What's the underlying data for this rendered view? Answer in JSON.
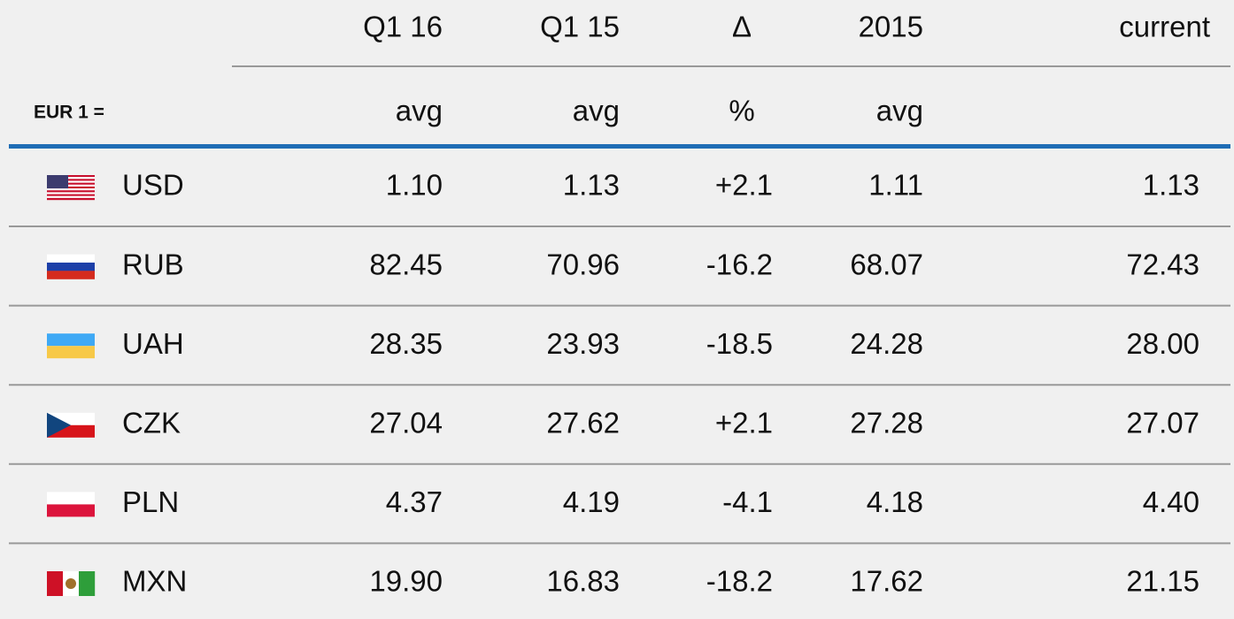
{
  "header": {
    "columns": [
      "Q1 16",
      "Q1 15",
      "Δ",
      "2015",
      "current"
    ],
    "label": "EUR 1 =",
    "units": [
      "avg",
      "avg",
      "%",
      "avg"
    ]
  },
  "table": {
    "rows": [
      {
        "currency": "USD",
        "values": [
          "1.10",
          "1.13",
          "+2.1",
          "1.11",
          "1.13"
        ]
      },
      {
        "currency": "RUB",
        "values": [
          "82.45",
          "70.96",
          "-16.2",
          "68.07",
          "72.43"
        ]
      },
      {
        "currency": "UAH",
        "values": [
          "28.35",
          "23.93",
          "-18.5",
          "24.28",
          "28.00"
        ]
      },
      {
        "currency": "CZK",
        "values": [
          "27.04",
          "27.62",
          "+2.1",
          "27.28",
          "27.07"
        ]
      },
      {
        "currency": "PLN",
        "values": [
          "4.37",
          "4.19",
          "-4.1",
          "4.18",
          "4.40"
        ]
      },
      {
        "currency": "MXN",
        "values": [
          "19.90",
          "16.83",
          "-18.2",
          "17.62",
          "21.15"
        ]
      }
    ]
  }
}
